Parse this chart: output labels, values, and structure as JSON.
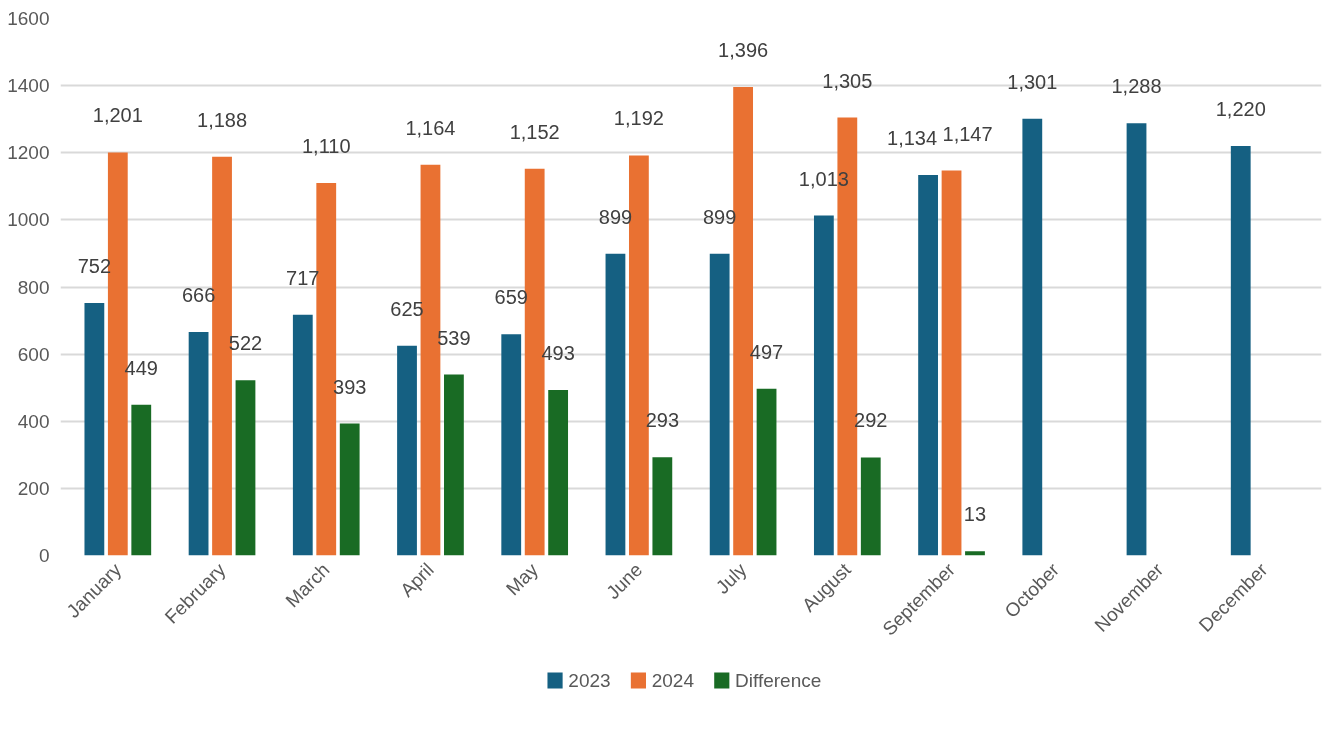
{
  "chart_data": {
    "type": "bar",
    "categories": [
      "January",
      "February",
      "March",
      "April",
      "May",
      "June",
      "July",
      "August",
      "September",
      "October",
      "November",
      "December"
    ],
    "series": [
      {
        "name": "2023",
        "color": "#156082",
        "values": [
          752,
          666,
          717,
          625,
          659,
          899,
          899,
          1013,
          1134,
          1301,
          1288,
          1220
        ],
        "value_labels": [
          "752",
          "666",
          "717",
          "625",
          "659",
          "899",
          "899",
          "1,013",
          "1,134",
          "1,301",
          "1,288",
          "1,220"
        ]
      },
      {
        "name": "2024",
        "color": "#e97132",
        "values": [
          1201,
          1188,
          1110,
          1164,
          1152,
          1192,
          1396,
          1305,
          1147,
          null,
          null,
          null
        ],
        "value_labels": [
          "1,201",
          "1,188",
          "1,110",
          "1,164",
          "1,152",
          "1,192",
          "1,396",
          "1,305",
          "1,147",
          null,
          null,
          null
        ]
      },
      {
        "name": "Difference",
        "color": "#196b24",
        "values": [
          449,
          522,
          393,
          539,
          493,
          293,
          497,
          292,
          13,
          null,
          null,
          null
        ],
        "value_labels": [
          "449",
          "522",
          "393",
          "539",
          "493",
          "293",
          "497",
          "292",
          "13",
          null,
          null,
          null
        ]
      }
    ],
    "ylim": [
      0,
      1600
    ],
    "yticks": [
      0,
      200,
      400,
      600,
      800,
      1000,
      1200,
      1400,
      1600
    ],
    "grid": "y",
    "legend": "bottom"
  }
}
